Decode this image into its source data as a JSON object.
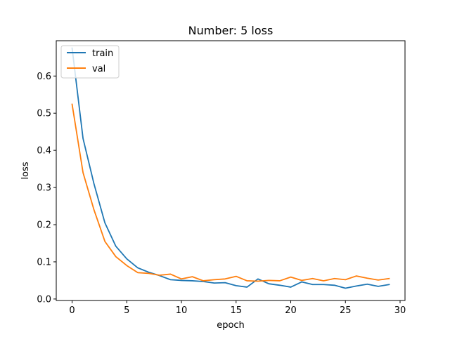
{
  "chart_data": {
    "type": "line",
    "title": "Number: 5 loss",
    "xlabel": "epoch",
    "ylabel": "loss",
    "xlim": [
      -1.45,
      30.45
    ],
    "ylim": [
      -0.004,
      0.695
    ],
    "x_ticks": [
      0,
      5,
      10,
      15,
      20,
      25,
      30
    ],
    "x_tick_labels": [
      "0",
      "5",
      "10",
      "15",
      "20",
      "25",
      "30"
    ],
    "y_ticks": [
      0.0,
      0.1,
      0.2,
      0.3,
      0.4,
      0.5,
      0.6
    ],
    "y_tick_labels": [
      "0.0",
      "0.1",
      "0.2",
      "0.3",
      "0.4",
      "0.5",
      "0.6"
    ],
    "grid": false,
    "legend_position": "top-left",
    "x": [
      0,
      1,
      2,
      3,
      4,
      5,
      6,
      7,
      8,
      9,
      10,
      11,
      12,
      13,
      14,
      15,
      16,
      17,
      18,
      19,
      20,
      21,
      22,
      23,
      24,
      25,
      26,
      27,
      28,
      29
    ],
    "series": [
      {
        "name": "train",
        "color": "#1f77b4",
        "values": [
          0.675,
          0.432,
          0.31,
          0.205,
          0.142,
          0.108,
          0.084,
          0.072,
          0.063,
          0.052,
          0.05,
          0.049,
          0.047,
          0.043,
          0.044,
          0.036,
          0.032,
          0.054,
          0.041,
          0.037,
          0.032,
          0.046,
          0.039,
          0.039,
          0.037,
          0.029,
          0.035,
          0.04,
          0.034,
          0.039
        ]
      },
      {
        "name": "val",
        "color": "#ff7f0e",
        "values": [
          0.524,
          0.34,
          0.24,
          0.155,
          0.114,
          0.09,
          0.071,
          0.069,
          0.064,
          0.067,
          0.054,
          0.06,
          0.049,
          0.052,
          0.054,
          0.061,
          0.049,
          0.048,
          0.05,
          0.049,
          0.059,
          0.05,
          0.055,
          0.049,
          0.055,
          0.052,
          0.062,
          0.056,
          0.051,
          0.055
        ]
      }
    ]
  }
}
